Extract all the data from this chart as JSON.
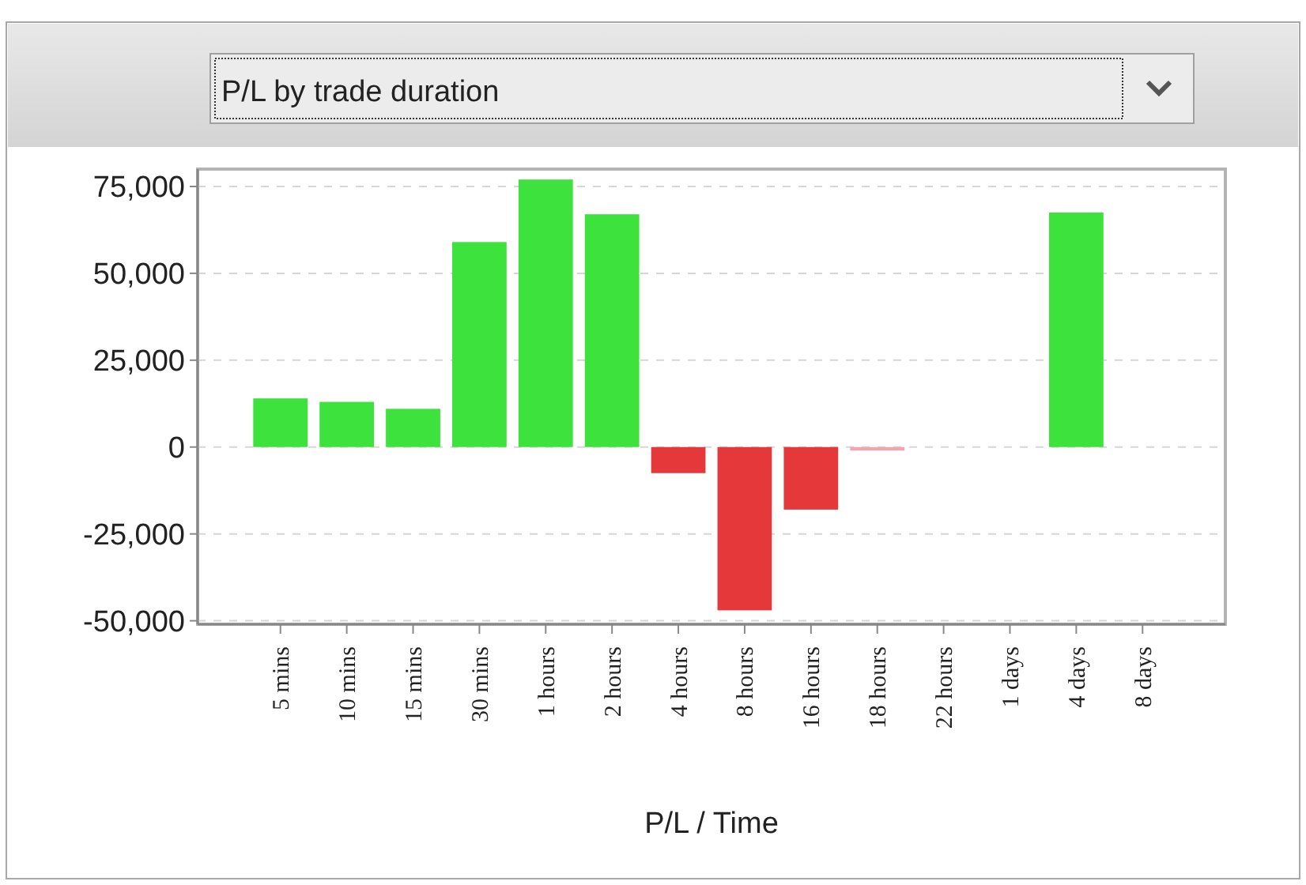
{
  "chart_data": {
    "type": "bar",
    "title": "P/L by trade duration",
    "xlabel": "P/L / Time",
    "categories": [
      "5 mins",
      "10 mins",
      "15 mins",
      "30 mins",
      "1 hours",
      "2 hours",
      "4 hours",
      "8 hours",
      "16 hours",
      "18 hours",
      "22 hours",
      "1 days",
      "4 days",
      "8 days"
    ],
    "values": [
      14000,
      13000,
      11000,
      59000,
      77000,
      67000,
      -7500,
      -47000,
      -18000,
      -1000,
      0,
      0,
      67500,
      0
    ],
    "colors": [
      "#3de23d",
      "#3de23d",
      "#3de23d",
      "#3de23d",
      "#3de23d",
      "#3de23d",
      "#e5383b",
      "#e5383b",
      "#e5383b",
      "#f4a4ac",
      "#3de23d",
      "#3de23d",
      "#3de23d",
      "#3de23d"
    ],
    "ylim": [
      -51000,
      80000
    ],
    "yticks": [
      {
        "value": -50000,
        "label": "-50,000"
      },
      {
        "value": -25000,
        "label": "-25,000"
      },
      {
        "value": 0,
        "label": "0"
      },
      {
        "value": 25000,
        "label": "25,000"
      },
      {
        "value": 50000,
        "label": "50,000"
      },
      {
        "value": 75000,
        "label": "75,000"
      }
    ],
    "grid": "y"
  }
}
